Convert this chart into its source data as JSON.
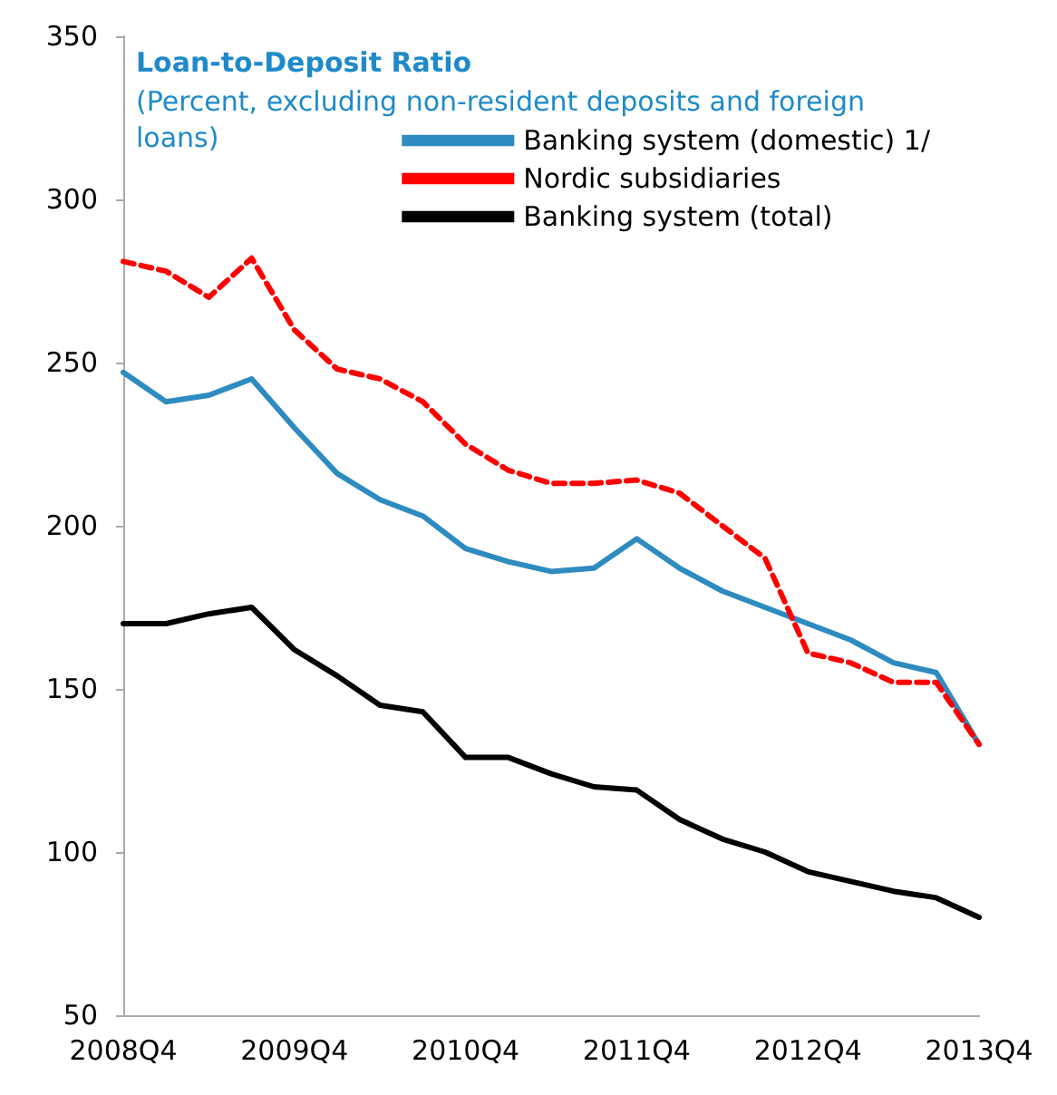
{
  "chart_data": {
    "type": "line",
    "title": "Loan-to-Deposit Ratio",
    "subtitle": "(Percent, excluding non-resident deposits and foreign loans)",
    "categories": [
      "2008Q4",
      null,
      null,
      null,
      "2009Q4",
      null,
      null,
      null,
      "2010Q4",
      null,
      null,
      null,
      "2011Q4",
      null,
      null,
      null,
      "2012Q4",
      null,
      null,
      null,
      "2013Q4"
    ],
    "series": [
      {
        "name": "Banking system (domestic) 1/",
        "color": "#2e8bc0",
        "line_style": "solid",
        "values": [
          247,
          238,
          240,
          245,
          230,
          216,
          208,
          203,
          193,
          189,
          186,
          187,
          196,
          187,
          180,
          175,
          170,
          165,
          158,
          155,
          133
        ]
      },
      {
        "name": "Nordic subsidiaries",
        "color": "#ff0000",
        "line_style": "dashed",
        "values": [
          281,
          278,
          270,
          282,
          260,
          248,
          245,
          238,
          225,
          217,
          213,
          213,
          214,
          210,
          200,
          190,
          161,
          158,
          152,
          152,
          133
        ]
      },
      {
        "name": "Banking system (total)",
        "color": "#000000",
        "line_style": "solid",
        "values": [
          170,
          170,
          173,
          175,
          162,
          154,
          145,
          143,
          129,
          129,
          124,
          120,
          119,
          110,
          104,
          100,
          94,
          91,
          88,
          86,
          80
        ]
      }
    ],
    "ylim": [
      50,
      350
    ],
    "yticks": [
      50,
      100,
      150,
      200,
      250,
      300,
      350
    ],
    "grid": false,
    "legend": "top right",
    "marker": "none"
  }
}
